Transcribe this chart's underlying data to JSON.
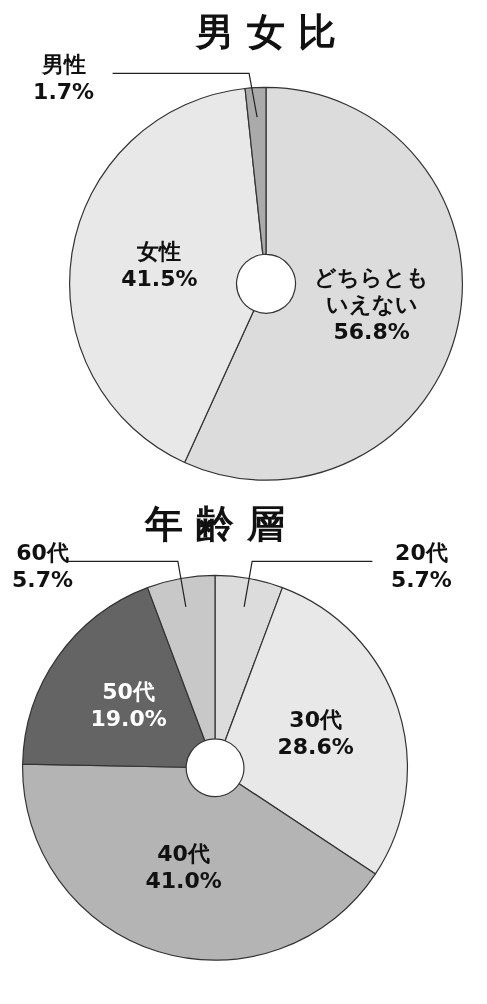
{
  "chart_data": [
    {
      "type": "donut",
      "title": "男 女 比",
      "categories": [
        "どちらともいえない",
        "女性",
        "男性"
      ],
      "values": [
        56.8,
        41.5,
        1.7
      ],
      "colors": [
        "#dcdcdc",
        "#e8e8e8",
        "#aaaaaa"
      ],
      "value_labels": [
        "56.8%",
        "41.5%",
        "1.7%"
      ],
      "legend": false
    },
    {
      "type": "donut",
      "title": "年 齢 層",
      "categories": [
        "20代",
        "30代",
        "40代",
        "50代",
        "60代"
      ],
      "values": [
        5.7,
        28.6,
        41.0,
        19.0,
        5.7
      ],
      "colors": [
        "#dcdcdc",
        "#e8e8e8",
        "#b4b4b4",
        "#646464",
        "#c8c8c8"
      ],
      "value_labels": [
        "5.7%",
        "28.6%",
        "41.0%",
        "19.0%",
        "5.7%"
      ],
      "legend": false
    }
  ]
}
